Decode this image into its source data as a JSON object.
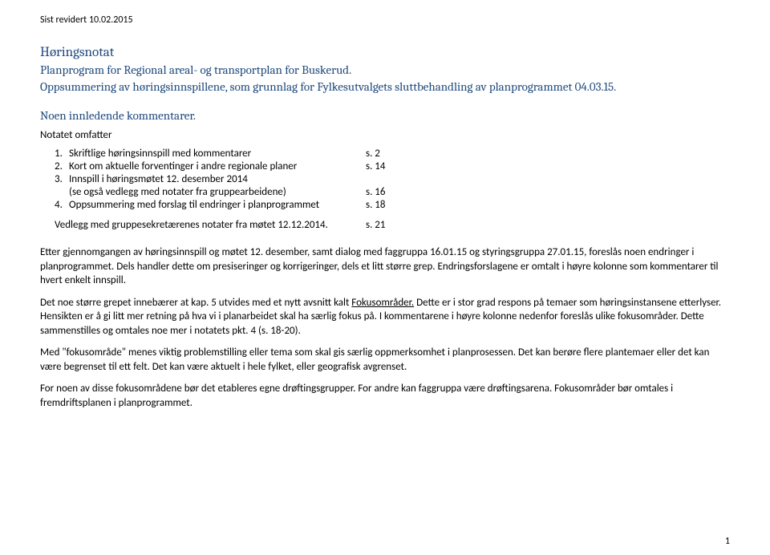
{
  "revision": "Sist revidert 10.02.2015",
  "title": "Høringsnotat",
  "subtitle1": "Planprogram for Regional areal- og transportplan for Buskerud.",
  "subtitle2": "Oppsummering av høringsinnspillene, som grunnlag for Fylkesutvalgets sluttbehandling av planprogrammet 04.03.15.",
  "section_label": "Noen innledende kommentarer.",
  "notatet": "Notatet omfatter",
  "toc": [
    {
      "n": "1.",
      "text": "Skriftlige høringsinnspill med kommentarer",
      "page": "s.  2"
    },
    {
      "n": "2.",
      "text": "Kort om aktuelle forventinger i andre regionale planer",
      "page": "s. 14"
    },
    {
      "n": "3.",
      "text": "Innspill i høringsmøtet 12. desember 2014",
      "page": ""
    },
    {
      "n": "",
      "text": "(se også vedlegg med notater fra gruppearbeidene)",
      "page": "s. 16"
    },
    {
      "n": "4.",
      "text": "Oppsummering med forslag til endringer i planprogrammet",
      "page": "s. 18"
    }
  ],
  "vedlegg": {
    "text": "Vedlegg med gruppesekretærenes notater fra møtet 12.12.2014.",
    "page": "s. 21"
  },
  "para1": "Etter gjennomgangen av høringsinnspill og møtet 12. desember, samt dialog med faggruppa 16.01.15 og styringsgruppa 27.01.15, foreslås noen endringer i planprogrammet. Dels handler dette om presiseringer og korrigeringer, dels et litt større grep. Endringsforslagene er omtalt i høyre kolonne som kommentarer til hvert enkelt innspill.",
  "para2a": "Det noe større grepet innebærer at kap. 5 utvides med et nytt avsnitt kalt ",
  "para2b_underline": "Fokusområder.",
  "para2c": " Dette er i stor grad respons på temaer som høringsinstansene etterlyser. Hensikten er å gi litt mer retning på hva vi i planarbeidet skal ha særlig fokus på. I kommentarene i høyre kolonne nedenfor foreslås ulike fokusområder. Dette sammenstilles og omtales noe mer i notatets pkt. 4 (s. 18-20).",
  "para3": "Med \"fokusområde\" menes viktig problemstilling eller tema som skal gis særlig oppmerksomhet i planprosessen. Det kan berøre flere plantemaer eller det kan være begrenset til ett felt. Det kan være aktuelt i hele fylket, eller geografisk avgrenset.",
  "para4": "For noen av disse fokusområdene bør det etableres egne drøftingsgrupper. For andre kan faggruppa være drøftingsarena. Fokusområder bør omtales i fremdriftsplanen i planprogrammet.",
  "pagenum": "1"
}
